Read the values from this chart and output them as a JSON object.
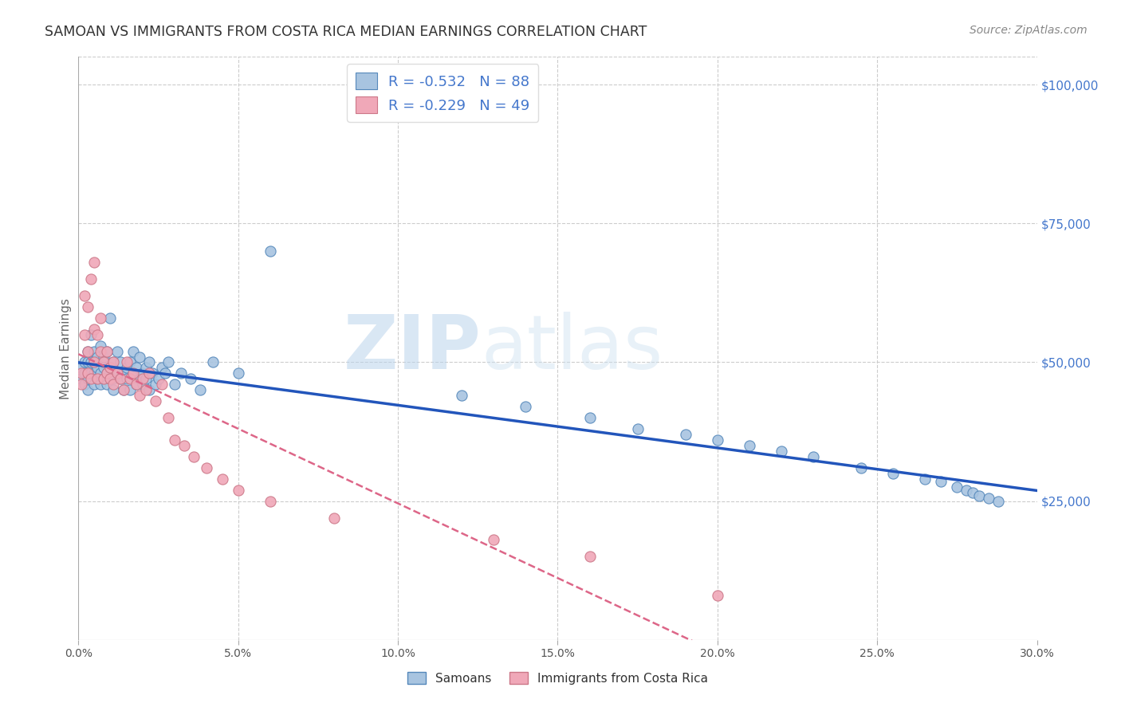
{
  "title": "SAMOAN VS IMMIGRANTS FROM COSTA RICA MEDIAN EARNINGS CORRELATION CHART",
  "source": "Source: ZipAtlas.com",
  "ylabel": "Median Earnings",
  "y_ticks": [
    0,
    25000,
    50000,
    75000,
    100000
  ],
  "y_tick_labels": [
    "",
    "$25,000",
    "$50,000",
    "$75,000",
    "$100,000"
  ],
  "x_min": 0.0,
  "x_max": 0.3,
  "y_min": 0,
  "y_max": 105000,
  "blue_R": -0.532,
  "blue_N": 88,
  "pink_R": -0.229,
  "pink_N": 49,
  "blue_color": "#a8c4e0",
  "blue_edge_color": "#5588bb",
  "blue_line_color": "#2255bb",
  "pink_color": "#f0a8b8",
  "pink_edge_color": "#cc7788",
  "pink_line_color": "#dd6688",
  "legend_label_blue": "Samoans",
  "legend_label_pink": "Immigrants from Costa Rica",
  "background_color": "#ffffff",
  "grid_color": "#cccccc",
  "title_color": "#333333",
  "axis_label_color": "#666666",
  "right_axis_color": "#4477cc",
  "blue_scatter_x": [
    0.001,
    0.001,
    0.002,
    0.002,
    0.002,
    0.003,
    0.003,
    0.003,
    0.003,
    0.004,
    0.004,
    0.004,
    0.005,
    0.005,
    0.005,
    0.005,
    0.006,
    0.006,
    0.006,
    0.007,
    0.007,
    0.007,
    0.008,
    0.008,
    0.008,
    0.009,
    0.009,
    0.009,
    0.01,
    0.01,
    0.01,
    0.011,
    0.011,
    0.011,
    0.012,
    0.012,
    0.013,
    0.013,
    0.014,
    0.014,
    0.015,
    0.015,
    0.016,
    0.016,
    0.017,
    0.017,
    0.018,
    0.018,
    0.019,
    0.019,
    0.02,
    0.02,
    0.021,
    0.021,
    0.022,
    0.022,
    0.023,
    0.024,
    0.025,
    0.026,
    0.027,
    0.028,
    0.03,
    0.032,
    0.035,
    0.038,
    0.042,
    0.05,
    0.06,
    0.12,
    0.14,
    0.16,
    0.175,
    0.19,
    0.2,
    0.21,
    0.22,
    0.23,
    0.245,
    0.255,
    0.265,
    0.27,
    0.275,
    0.278,
    0.28,
    0.282,
    0.285,
    0.288
  ],
  "blue_scatter_y": [
    47000,
    49000,
    46000,
    48000,
    50000,
    45000,
    47000,
    50000,
    52000,
    48000,
    50000,
    55000,
    46000,
    48000,
    50000,
    52000,
    47000,
    49000,
    51000,
    46000,
    48000,
    53000,
    47000,
    49000,
    51000,
    46000,
    48000,
    52000,
    47000,
    49000,
    58000,
    50000,
    47000,
    45000,
    48000,
    52000,
    47000,
    50000,
    48000,
    45000,
    49000,
    47000,
    50000,
    45000,
    48000,
    52000,
    46000,
    49000,
    47000,
    51000,
    48000,
    46000,
    49000,
    47000,
    50000,
    45000,
    48000,
    46000,
    47000,
    49000,
    48000,
    50000,
    46000,
    48000,
    47000,
    45000,
    50000,
    48000,
    70000,
    44000,
    42000,
    40000,
    38000,
    37000,
    36000,
    35000,
    34000,
    33000,
    31000,
    30000,
    29000,
    28500,
    27500,
    27000,
    26500,
    26000,
    25500,
    25000
  ],
  "pink_scatter_x": [
    0.001,
    0.001,
    0.002,
    0.002,
    0.003,
    0.003,
    0.003,
    0.004,
    0.004,
    0.005,
    0.005,
    0.005,
    0.006,
    0.006,
    0.007,
    0.007,
    0.008,
    0.008,
    0.009,
    0.009,
    0.01,
    0.01,
    0.011,
    0.011,
    0.012,
    0.013,
    0.014,
    0.015,
    0.016,
    0.017,
    0.018,
    0.019,
    0.02,
    0.021,
    0.022,
    0.024,
    0.026,
    0.028,
    0.03,
    0.033,
    0.036,
    0.04,
    0.045,
    0.05,
    0.06,
    0.08,
    0.13,
    0.16,
    0.2
  ],
  "pink_scatter_y": [
    46000,
    48000,
    55000,
    62000,
    48000,
    52000,
    60000,
    65000,
    47000,
    56000,
    50000,
    68000,
    55000,
    47000,
    58000,
    52000,
    50000,
    47000,
    52000,
    48000,
    49000,
    47000,
    50000,
    46000,
    48000,
    47000,
    45000,
    50000,
    47000,
    48000,
    46000,
    44000,
    47000,
    45000,
    48000,
    43000,
    46000,
    40000,
    36000,
    35000,
    33000,
    31000,
    29000,
    27000,
    25000,
    22000,
    18000,
    15000,
    8000
  ]
}
